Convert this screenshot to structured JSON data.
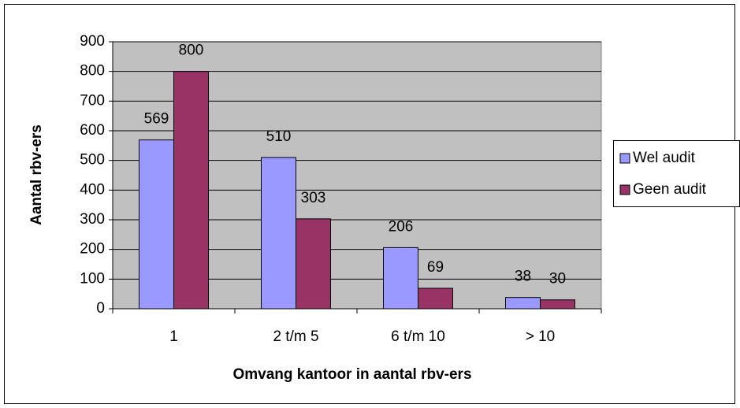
{
  "chart_data": {
    "type": "bar",
    "x_label": "Omvang kantoor in aantal rbv-ers",
    "y_label": "Aantal rbv-ers",
    "categories": [
      "1",
      "2 t/m 5",
      "6 t/m 10",
      "> 10"
    ],
    "series": [
      {
        "name": "Wel audit",
        "color": "#9999ff",
        "values": [
          569,
          510,
          206,
          38
        ]
      },
      {
        "name": "Geen audit",
        "color": "#993366",
        "values": [
          800,
          303,
          69,
          30
        ]
      }
    ],
    "ylim": [
      0,
      900
    ],
    "yticks": [
      0,
      100,
      200,
      300,
      400,
      500,
      600,
      700,
      800,
      900
    ],
    "grid": true,
    "legend": "right"
  }
}
